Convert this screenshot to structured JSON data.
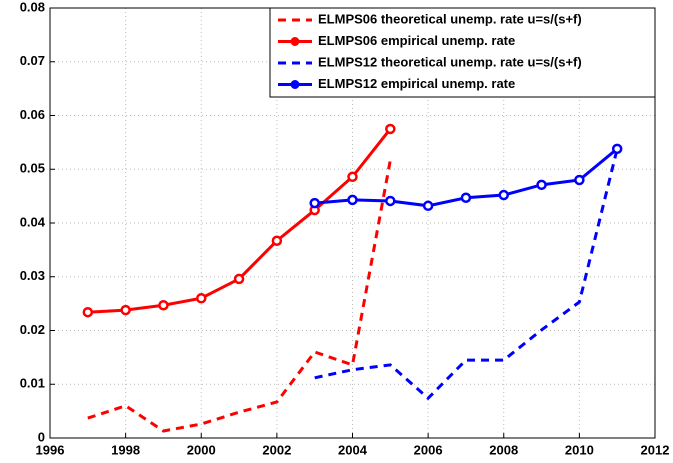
{
  "chart_data": {
    "type": "line",
    "x": [
      1997,
      1998,
      1999,
      2000,
      2001,
      2002,
      2003,
      2004,
      2005,
      2006,
      2007,
      2008,
      2009,
      2010,
      2011
    ],
    "series": [
      {
        "name": "ELMPS06 theoretical unemp. rate u=s/(s+f)",
        "color": "#ff0000",
        "linestyle": "dashed",
        "marker": "none",
        "values": [
          0.0037,
          0.006,
          0.0013,
          0.0026,
          0.0048,
          0.0067,
          0.016,
          0.0136,
          0.0517,
          null,
          null,
          null,
          null,
          null,
          null
        ]
      },
      {
        "name": "ELMPS06 empirical unemp. rate",
        "color": "#ff0000",
        "linestyle": "solid",
        "marker": "circle",
        "values": [
          0.0234,
          0.0238,
          0.0247,
          0.026,
          0.0296,
          0.0367,
          0.0424,
          0.0486,
          0.0575,
          null,
          null,
          null,
          null,
          null,
          null
        ]
      },
      {
        "name": "ELMPS12 theoretical unemp. rate u=s/(s+f)",
        "color": "#0000ff",
        "linestyle": "dashed",
        "marker": "none",
        "values": [
          null,
          null,
          null,
          null,
          null,
          null,
          0.0112,
          0.0127,
          0.0136,
          0.0074,
          0.0145,
          0.0145,
          0.0201,
          0.0253,
          0.0538
        ]
      },
      {
        "name": "ELMPS12 empirical unemp. rate",
        "color": "#0000ff",
        "linestyle": "solid",
        "marker": "circle",
        "values": [
          null,
          null,
          null,
          null,
          null,
          null,
          0.0437,
          0.0443,
          0.0441,
          0.0432,
          0.0447,
          0.0452,
          0.0471,
          0.048,
          0.0538
        ]
      }
    ],
    "xlim": [
      1996,
      2012
    ],
    "xticks": [
      1996,
      1998,
      2000,
      2002,
      2004,
      2006,
      2008,
      2010,
      2012
    ],
    "ylim": [
      0,
      0.08
    ],
    "yticks": [
      0,
      0.01,
      0.02,
      0.03,
      0.04,
      0.05,
      0.06,
      0.07,
      0.08
    ],
    "grid": true,
    "legend": "upper right"
  }
}
